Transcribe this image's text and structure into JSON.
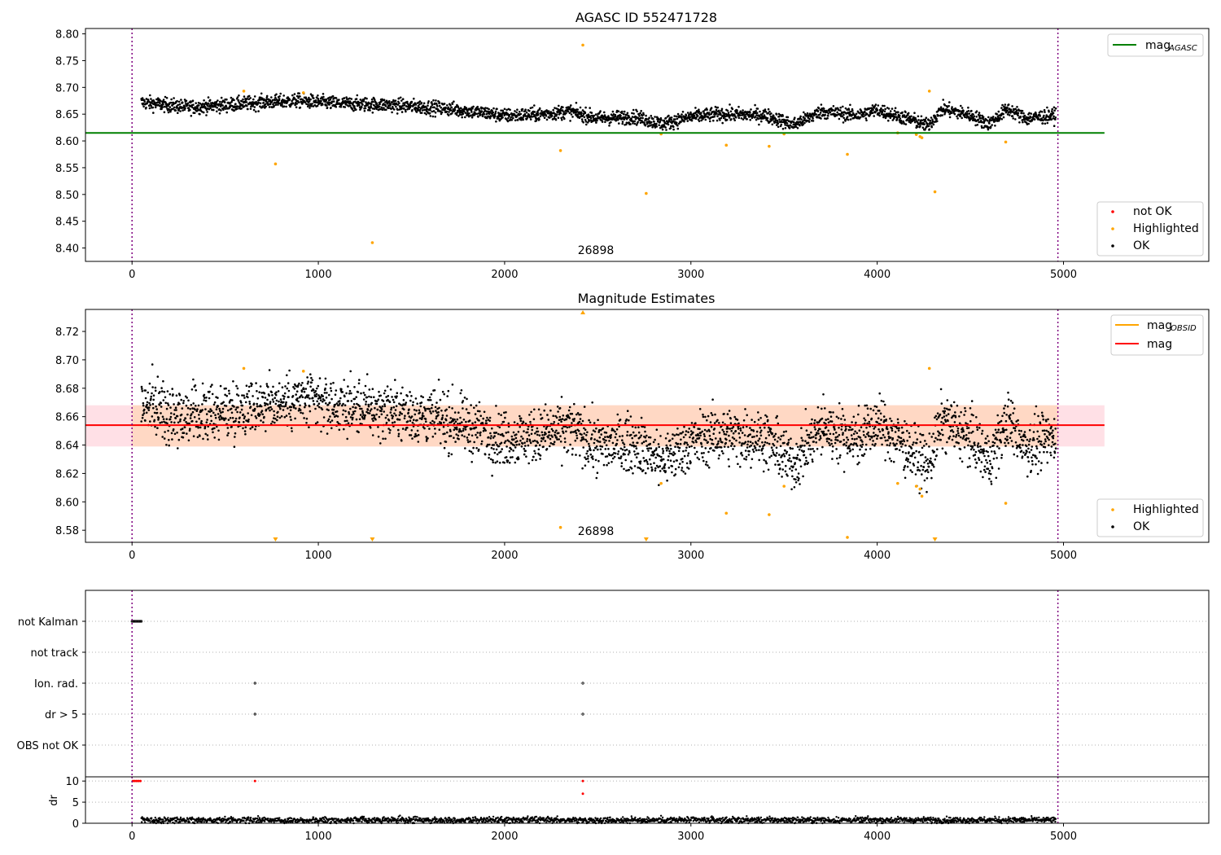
{
  "chart_data": [
    {
      "type": "scatter",
      "title": "AGASC ID 552471728",
      "xlim": [
        -250,
        5780
      ],
      "ylim": [
        8.375,
        8.81
      ],
      "x_ticks": [
        0,
        1000,
        2000,
        3000,
        4000,
        5000
      ],
      "y_ticks": [
        8.4,
        8.45,
        8.5,
        8.55,
        8.6,
        8.65,
        8.7,
        8.75,
        8.8
      ],
      "y_tick_labels": [
        "8.40",
        "8.45",
        "8.50",
        "8.55",
        "8.60",
        "8.65",
        "8.70",
        "8.75",
        "8.80"
      ],
      "vlines": [
        0,
        4970
      ],
      "hline": {
        "name": "mag_AGASC",
        "y": 8.615,
        "x_range": [
          -250,
          5220
        ],
        "color": "#008000"
      },
      "annotation": {
        "text": "26898",
        "x": 2470,
        "y": 8.39
      },
      "ok_trend": [
        [
          50,
          8.672
        ],
        [
          300,
          8.663
        ],
        [
          500,
          8.667
        ],
        [
          700,
          8.672
        ],
        [
          900,
          8.675
        ],
        [
          1100,
          8.67
        ],
        [
          1400,
          8.667
        ],
        [
          1700,
          8.66
        ],
        [
          1900,
          8.652
        ],
        [
          2000,
          8.647
        ],
        [
          2200,
          8.65
        ],
        [
          2350,
          8.655
        ],
        [
          2500,
          8.642
        ],
        [
          2700,
          8.645
        ],
        [
          2850,
          8.632
        ],
        [
          3000,
          8.645
        ],
        [
          3150,
          8.65
        ],
        [
          3400,
          8.648
        ],
        [
          3550,
          8.63
        ],
        [
          3700,
          8.655
        ],
        [
          3900,
          8.648
        ],
        [
          4000,
          8.658
        ],
        [
          4100,
          8.648
        ],
        [
          4200,
          8.638
        ],
        [
          4270,
          8.628
        ],
        [
          4350,
          8.66
        ],
        [
          4500,
          8.648
        ],
        [
          4600,
          8.632
        ],
        [
          4700,
          8.66
        ],
        [
          4800,
          8.642
        ],
        [
          4960,
          8.648
        ]
      ],
      "highlighted": [
        [
          600,
          8.693
        ],
        [
          770,
          8.557
        ],
        [
          920,
          8.69
        ],
        [
          1290,
          8.41
        ],
        [
          2300,
          8.582
        ],
        [
          2420,
          8.779
        ],
        [
          2760,
          8.502
        ],
        [
          2840,
          8.613
        ],
        [
          3190,
          8.592
        ],
        [
          3420,
          8.59
        ],
        [
          3500,
          8.613
        ],
        [
          3840,
          8.575
        ],
        [
          4110,
          8.615
        ],
        [
          4210,
          8.612
        ],
        [
          4230,
          8.608
        ],
        [
          4240,
          8.606
        ],
        [
          4280,
          8.693
        ],
        [
          4310,
          8.505
        ],
        [
          4690,
          8.598
        ]
      ],
      "legends": [
        {
          "items": [
            {
              "label": "mag",
              "sub": "AGASC",
              "kind": "line",
              "color": "#008000"
            }
          ]
        },
        {
          "items": [
            {
              "label": "not OK",
              "kind": "dot",
              "color": "#ff0000"
            },
            {
              "label": "Highlighted",
              "kind": "dot",
              "color": "#ffa500"
            },
            {
              "label": "OK",
              "kind": "dot",
              "color": "#000000"
            }
          ]
        }
      ],
      "legend_placement": [
        "top-right",
        "bottom-right"
      ]
    },
    {
      "type": "scatter",
      "title": "Magnitude Estimates",
      "xlim": [
        -250,
        5780
      ],
      "ylim": [
        8.5715,
        8.7355
      ],
      "x_ticks": [
        0,
        1000,
        2000,
        3000,
        4000,
        5000
      ],
      "y_ticks": [
        8.58,
        8.6,
        8.62,
        8.64,
        8.66,
        8.68,
        8.7,
        8.72
      ],
      "y_tick_labels": [
        "8.58",
        "8.60",
        "8.62",
        "8.64",
        "8.66",
        "8.68",
        "8.70",
        "8.72"
      ],
      "vlines": [
        0,
        4970
      ],
      "band_outer": {
        "y": [
          8.639,
          8.668
        ],
        "x_range": [
          -250,
          5220
        ],
        "color": "#ffe0e6"
      },
      "band_inner": {
        "y": [
          8.639,
          8.668
        ],
        "x_range": [
          0,
          4970
        ],
        "color": "#ffd8c4"
      },
      "mag_line": {
        "name": "mag",
        "y": 8.654,
        "x_range": [
          -250,
          5220
        ],
        "color": "#ff0000"
      },
      "annotation": {
        "text": "26898",
        "x": 2470,
        "y": 8.577
      },
      "highlighted": [
        [
          600,
          8.694
        ],
        [
          920,
          8.692
        ],
        [
          2300,
          8.582
        ],
        [
          2840,
          8.613
        ],
        [
          3190,
          8.592
        ],
        [
          3420,
          8.591
        ],
        [
          3500,
          8.611
        ],
        [
          3840,
          8.575
        ],
        [
          4110,
          8.613
        ],
        [
          4210,
          8.611
        ],
        [
          4230,
          8.609
        ],
        [
          4240,
          8.604
        ],
        [
          4280,
          8.694
        ],
        [
          4690,
          8.599
        ]
      ],
      "clipped_low": [
        770,
        1290,
        2760,
        4310
      ],
      "clipped_high": [
        2420
      ],
      "legends": [
        {
          "items": [
            {
              "label": "mag",
              "sub": "OBSID",
              "kind": "line",
              "color": "#ffa500"
            },
            {
              "label": "mag",
              "kind": "line",
              "color": "#ff0000"
            }
          ]
        },
        {
          "items": [
            {
              "label": "Highlighted",
              "kind": "dot",
              "color": "#ffa500"
            },
            {
              "label": "OK",
              "kind": "dot",
              "color": "#000000"
            }
          ]
        }
      ],
      "legend_placement": [
        "top-right",
        "bottom-right"
      ]
    },
    {
      "type": "scatter",
      "title": "",
      "xlim": [
        -250,
        5780
      ],
      "categories": [
        "not Kalman",
        "not track",
        "Ion. rad.",
        "dr > 5",
        "OBS not OK"
      ],
      "vlines": [
        0,
        4970
      ],
      "flags": {
        "not Kalman": [
          0,
          5,
          10,
          15,
          20,
          25,
          30,
          35,
          40,
          45,
          50
        ],
        "Ion. rad.": [
          660,
          2420
        ],
        "dr > 5": [
          660,
          2420
        ]
      }
    },
    {
      "type": "scatter",
      "title": "",
      "ylabel": "dr",
      "xlim": [
        -250,
        5780
      ],
      "ylim": [
        0,
        11
      ],
      "x_ticks": [
        0,
        1000,
        2000,
        3000,
        4000,
        5000
      ],
      "y_ticks": [
        0,
        5,
        10
      ],
      "y_tick_labels": [
        "0",
        "5",
        "10"
      ],
      "vlines": [
        0,
        4970
      ],
      "dr_band": [
        0.2,
        1.4
      ],
      "high_dr": [
        [
          5,
          10
        ],
        [
          15,
          10
        ],
        [
          25,
          10
        ],
        [
          35,
          10
        ],
        [
          45,
          10
        ],
        [
          660,
          10
        ],
        [
          2420,
          10
        ],
        [
          2420,
          7
        ]
      ]
    }
  ]
}
